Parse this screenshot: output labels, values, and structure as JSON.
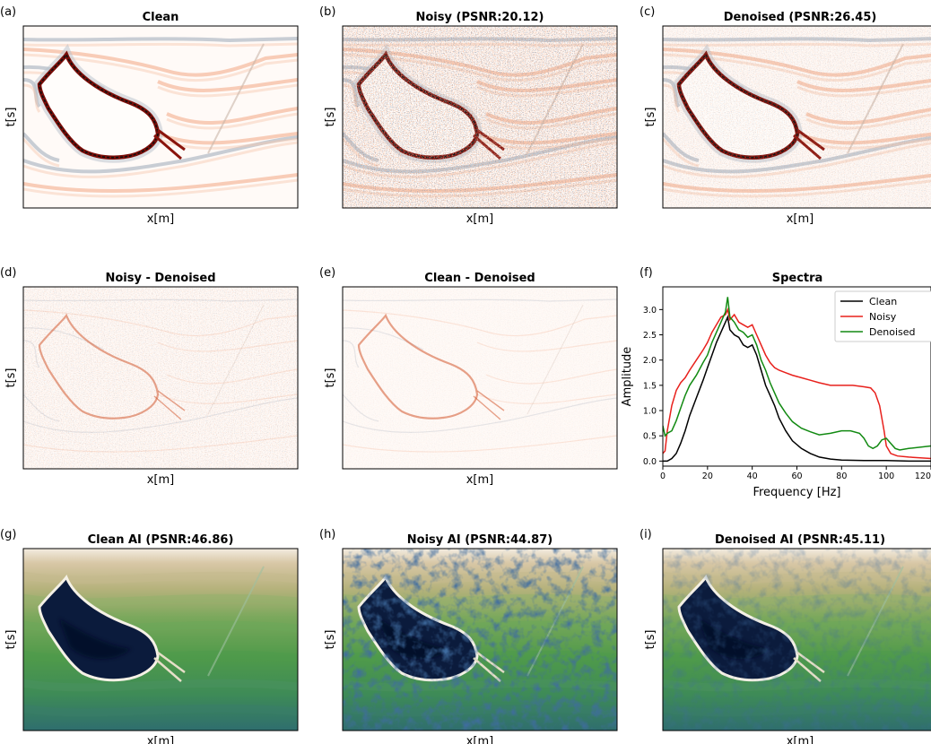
{
  "panels": [
    {
      "letter": "(a)",
      "title": "Clean",
      "xlabel": "x[m]",
      "ylabel": "t[s]",
      "style": "seismic",
      "noise": 0.0,
      "residual": false
    },
    {
      "letter": "(b)",
      "title": "Noisy (PSNR:20.12)",
      "xlabel": "x[m]",
      "ylabel": "t[s]",
      "style": "seismic",
      "noise": 1.0,
      "residual": false
    },
    {
      "letter": "(c)",
      "title": "Denoised (PSNR:26.45)",
      "xlabel": "x[m]",
      "ylabel": "t[s]",
      "style": "seismic",
      "noise": 0.35,
      "residual": false
    },
    {
      "letter": "(d)",
      "title": "Noisy - Denoised",
      "xlabel": "x[m]",
      "ylabel": "t[s]",
      "style": "seismic",
      "noise": 0.6,
      "residual": true
    },
    {
      "letter": "(e)",
      "title": "Clean - Denoised",
      "xlabel": "x[m]",
      "ylabel": "t[s]",
      "style": "seismic",
      "noise": 0.2,
      "residual": true
    },
    {
      "letter": "(g)",
      "title": "Clean AI (PSNR:46.86)",
      "xlabel": "x[m]",
      "ylabel": "t[s]",
      "style": "ai",
      "noise": 0.0,
      "residual": false
    },
    {
      "letter": "(h)",
      "title": "Noisy AI (PSNR:44.87)",
      "xlabel": "x[m]",
      "ylabel": "t[s]",
      "style": "ai",
      "noise": 1.0,
      "residual": false
    },
    {
      "letter": "(i)",
      "title": "Denoised AI (PSNR:45.11)",
      "xlabel": "x[m]",
      "ylabel": "t[s]",
      "style": "ai",
      "noise": 0.4,
      "residual": false
    }
  ],
  "spectra": {
    "letter": "(f)",
    "title": "Spectra",
    "xlabel": "Frequency [Hz]",
    "ylabel": "Amplitude",
    "xlim": [
      0,
      120
    ],
    "ylim": [
      -0.1,
      3.45
    ],
    "xticks": [
      "0",
      "20",
      "40",
      "60",
      "80",
      "100",
      "120"
    ],
    "yticks": [
      "0.0",
      "0.5",
      "1.0",
      "1.5",
      "2.0",
      "2.5",
      "3.0"
    ],
    "legend_position": "top-right"
  },
  "chart_data": {
    "type": "line",
    "title": "Spectra",
    "xlabel": "Frequency [Hz]",
    "ylabel": "Amplitude",
    "xlim": [
      0,
      120
    ],
    "ylim": [
      -0.1,
      3.45
    ],
    "legend": "top-right",
    "series": [
      {
        "name": "Clean",
        "color": "#000000",
        "x": [
          0,
          2,
          4,
          6,
          8,
          10,
          12,
          15,
          18,
          20,
          22,
          24,
          26,
          28,
          29,
          30,
          32,
          34,
          36,
          38,
          40,
          42,
          44,
          46,
          48,
          50,
          52,
          55,
          58,
          62,
          66,
          70,
          75,
          80,
          90,
          100,
          110,
          120
        ],
        "y": [
          0.0,
          0.0,
          0.05,
          0.15,
          0.35,
          0.6,
          0.9,
          1.25,
          1.6,
          1.85,
          2.1,
          2.35,
          2.55,
          2.75,
          2.85,
          2.6,
          2.5,
          2.45,
          2.3,
          2.25,
          2.3,
          2.1,
          1.8,
          1.5,
          1.3,
          1.1,
          0.85,
          0.6,
          0.4,
          0.25,
          0.15,
          0.08,
          0.04,
          0.02,
          0.01,
          0.01,
          0.0,
          0.0
        ]
      },
      {
        "name": "Noisy",
        "color": "#e8201c",
        "x": [
          0,
          1,
          2,
          4,
          6,
          8,
          10,
          12,
          15,
          18,
          20,
          22,
          24,
          26,
          28,
          29,
          30,
          32,
          34,
          36,
          38,
          40,
          42,
          44,
          46,
          48,
          50,
          52,
          55,
          58,
          62,
          66,
          70,
          75,
          80,
          85,
          90,
          93,
          95,
          97,
          99,
          100,
          102,
          105,
          110,
          120
        ],
        "y": [
          0.15,
          0.2,
          0.6,
          1.1,
          1.4,
          1.55,
          1.65,
          1.8,
          2.0,
          2.2,
          2.35,
          2.55,
          2.7,
          2.85,
          2.9,
          3.0,
          2.8,
          2.9,
          2.75,
          2.7,
          2.65,
          2.7,
          2.5,
          2.3,
          2.1,
          1.95,
          1.85,
          1.8,
          1.75,
          1.7,
          1.65,
          1.6,
          1.55,
          1.5,
          1.5,
          1.5,
          1.47,
          1.45,
          1.35,
          1.1,
          0.6,
          0.3,
          0.15,
          0.1,
          0.08,
          0.05
        ]
      },
      {
        "name": "Denoised",
        "color": "#128a12",
        "x": [
          0,
          1,
          2,
          4,
          6,
          8,
          10,
          12,
          15,
          18,
          20,
          22,
          24,
          26,
          28,
          29,
          30,
          32,
          34,
          36,
          38,
          40,
          42,
          44,
          46,
          48,
          50,
          52,
          55,
          58,
          62,
          66,
          70,
          75,
          80,
          84,
          88,
          90,
          92,
          94,
          96,
          98,
          100,
          102,
          104,
          106,
          110,
          120
        ],
        "y": [
          0.7,
          0.5,
          0.55,
          0.6,
          0.8,
          1.05,
          1.3,
          1.5,
          1.7,
          1.95,
          2.1,
          2.35,
          2.55,
          2.75,
          2.95,
          3.25,
          2.85,
          2.75,
          2.6,
          2.55,
          2.45,
          2.5,
          2.3,
          2.0,
          1.8,
          1.55,
          1.35,
          1.15,
          0.95,
          0.78,
          0.65,
          0.58,
          0.52,
          0.55,
          0.6,
          0.6,
          0.55,
          0.45,
          0.3,
          0.25,
          0.3,
          0.42,
          0.45,
          0.35,
          0.25,
          0.22,
          0.25,
          0.3
        ]
      }
    ]
  }
}
